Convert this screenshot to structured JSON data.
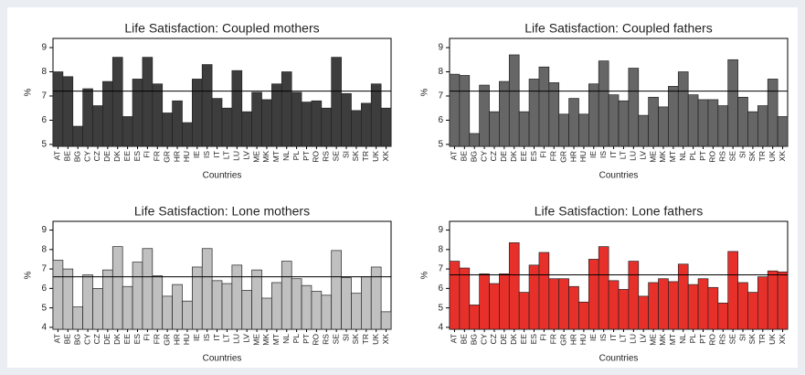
{
  "chart_data": [
    {
      "type": "bar",
      "title": "Life Satisfaction: Coupled mothers",
      "x_label": "Countries",
      "y_label": "%",
      "categories": [
        "AT",
        "BE",
        "BG",
        "CY",
        "CZ",
        "DE",
        "DK",
        "EE",
        "ES",
        "FI",
        "FR",
        "GR",
        "HR",
        "HU",
        "IE",
        "IS",
        "IT",
        "LT",
        "LU",
        "LV",
        "ME",
        "MK",
        "MT",
        "NL",
        "PL",
        "PT",
        "RO",
        "RS",
        "SE",
        "SI",
        "SK",
        "TR",
        "UK",
        "XK"
      ],
      "values": [
        8.0,
        7.8,
        5.75,
        7.3,
        6.6,
        7.6,
        8.6,
        6.15,
        7.7,
        8.6,
        7.5,
        6.3,
        6.8,
        5.9,
        7.7,
        8.3,
        6.9,
        6.5,
        8.05,
        6.35,
        7.15,
        6.85,
        7.5,
        8.0,
        7.15,
        6.75,
        6.8,
        6.5,
        8.6,
        7.1,
        6.4,
        6.7,
        7.5,
        6.5
      ],
      "color": "#3d3d3d",
      "reference_line": 7.2,
      "ylim": [
        4.92,
        9.38
      ],
      "yticks": [
        5,
        6,
        7,
        8,
        9
      ]
    },
    {
      "type": "bar",
      "title": "Life Satisfaction: Coupled fathers",
      "x_label": "Countries",
      "y_label": "%",
      "categories": [
        "AT",
        "BE",
        "BG",
        "CY",
        "CZ",
        "DE",
        "DK",
        "EE",
        "ES",
        "FI",
        "FR",
        "GR",
        "HR",
        "HU",
        "IE",
        "IS",
        "IT",
        "LT",
        "LU",
        "LV",
        "ME",
        "MK",
        "MT",
        "NL",
        "PL",
        "PT",
        "RO",
        "RS",
        "SE",
        "SI",
        "SK",
        "TR",
        "UK",
        "XK"
      ],
      "values": [
        7.9,
        7.85,
        5.45,
        7.45,
        6.35,
        7.6,
        8.7,
        6.35,
        7.7,
        8.2,
        7.55,
        6.25,
        6.9,
        6.25,
        7.5,
        8.45,
        7.05,
        6.8,
        8.15,
        6.2,
        6.95,
        6.55,
        7.4,
        8.0,
        7.05,
        6.85,
        6.85,
        6.6,
        8.5,
        6.95,
        6.35,
        6.6,
        7.7,
        6.15
      ],
      "color": "#666666",
      "reference_line": 7.2,
      "ylim": [
        4.92,
        9.38
      ],
      "yticks": [
        5,
        6,
        7,
        8,
        9
      ]
    },
    {
      "type": "bar",
      "title": "Life Satisfaction: Lone mothers",
      "x_label": "Countries",
      "y_label": "%",
      "categories": [
        "AT",
        "BE",
        "BG",
        "CY",
        "CZ",
        "DE",
        "DK",
        "EE",
        "ES",
        "FI",
        "FR",
        "GR",
        "HR",
        "HU",
        "IE",
        "IS",
        "IT",
        "LT",
        "LU",
        "LV",
        "ME",
        "MK",
        "MT",
        "NL",
        "PL",
        "PT",
        "RO",
        "RS",
        "SE",
        "SI",
        "SK",
        "TR",
        "UK",
        "XK"
      ],
      "values": [
        7.45,
        7.0,
        5.05,
        6.7,
        6.0,
        6.95,
        8.15,
        6.1,
        7.35,
        8.05,
        6.65,
        5.6,
        6.2,
        5.35,
        7.1,
        8.05,
        6.4,
        6.25,
        7.2,
        5.9,
        6.95,
        5.5,
        6.3,
        7.4,
        6.5,
        6.15,
        5.85,
        5.65,
        7.95,
        6.55,
        5.75,
        6.6,
        7.1,
        4.8
      ],
      "color": "#c0c0c0",
      "reference_line": 6.6,
      "ylim": [
        3.9,
        9.45
      ],
      "yticks": [
        4,
        5,
        6,
        7,
        8,
        9
      ]
    },
    {
      "type": "bar",
      "title": "Life Satisfaction: Lone fathers",
      "x_label": "Countries",
      "y_label": "%",
      "categories": [
        "AT",
        "BE",
        "BG",
        "CY",
        "CZ",
        "DE",
        "DK",
        "EE",
        "ES",
        "FI",
        "FR",
        "GR",
        "HR",
        "HU",
        "IE",
        "IS",
        "IT",
        "LT",
        "LU",
        "LV",
        "ME",
        "MK",
        "MT",
        "NL",
        "PL",
        "PT",
        "RO",
        "RS",
        "SE",
        "SI",
        "SK",
        "TR",
        "UK",
        "XK"
      ],
      "values": [
        7.4,
        7.05,
        5.15,
        6.75,
        6.25,
        6.75,
        8.35,
        5.8,
        7.2,
        7.85,
        6.5,
        6.5,
        6.1,
        5.3,
        7.5,
        8.15,
        6.4,
        5.95,
        7.4,
        5.6,
        6.3,
        6.5,
        6.35,
        7.25,
        6.2,
        6.5,
        6.05,
        5.25,
        7.9,
        6.3,
        5.8,
        6.6,
        6.9,
        6.85
      ],
      "color": "#e8302a",
      "reference_line": 6.7,
      "ylim": [
        3.9,
        9.45
      ],
      "yticks": [
        4,
        5,
        6,
        7,
        8,
        9
      ]
    }
  ]
}
